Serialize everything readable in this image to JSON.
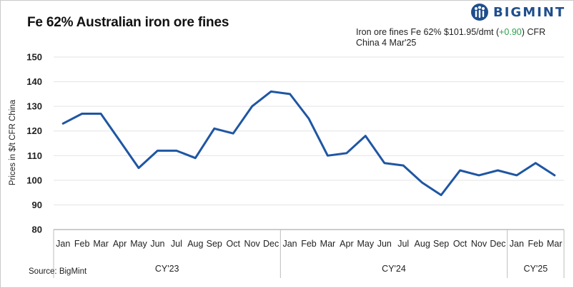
{
  "header": {
    "title": "Fe 62% Australian iron ore fines",
    "logo_text": "BIGMINT",
    "annotation_prefix": "Iron ore fines Fe 62%  $101.95/dmt  (",
    "annotation_change": "+0.90",
    "annotation_suffix": ") CFR",
    "annotation_line2": "China 4 Mar'25"
  },
  "source": "Source: BigMint",
  "colors": {
    "line": "#1f56a3",
    "change_positive": "#2e9e4f",
    "brand": "#1f4e8c",
    "grid": "#e3e3e3"
  },
  "chart_data": {
    "type": "line",
    "title": "Fe 62% Australian iron ore fines",
    "ylabel": "Prices in $/t CFR China",
    "xlabel": "",
    "ylim": [
      80,
      150
    ],
    "yticks": [
      80,
      90,
      100,
      110,
      120,
      130,
      140,
      150
    ],
    "grid": "horizontal",
    "categories": [
      "Jan",
      "Feb",
      "Mar",
      "Apr",
      "May",
      "Jun",
      "Jul",
      "Aug",
      "Sep",
      "Oct",
      "Nov",
      "Dec",
      "Jan",
      "Feb",
      "Mar",
      "Apr",
      "May",
      "Jun",
      "Jul",
      "Aug",
      "Sep",
      "Oct",
      "Nov",
      "Dec",
      "Jan",
      "Feb",
      "Mar"
    ],
    "groups": [
      {
        "label": "CY'23",
        "count": 12
      },
      {
        "label": "CY'24",
        "count": 12
      },
      {
        "label": "CY'25",
        "count": 3
      }
    ],
    "series": [
      {
        "values": [
          123,
          127,
          127,
          116,
          105,
          112,
          112,
          109,
          121,
          119,
          130,
          136,
          135,
          125,
          110,
          111,
          118,
          107,
          106,
          99,
          94,
          104,
          102,
          104,
          102,
          107,
          102
        ]
      }
    ]
  }
}
